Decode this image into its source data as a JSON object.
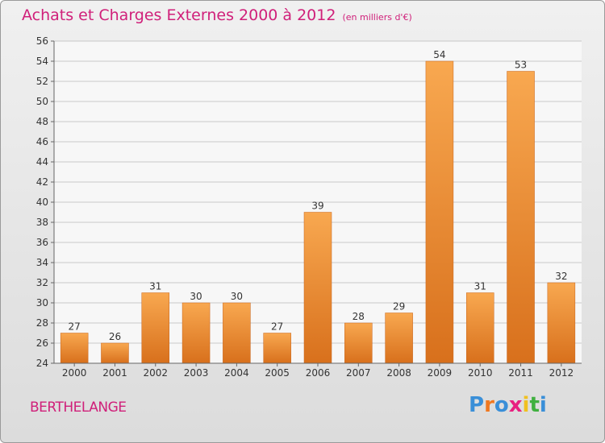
{
  "title": "Achats et Charges Externes 2000 à 2012",
  "subtitle": "(en milliers d'€)",
  "commune": "BERTHELANGE",
  "logo": {
    "letters": [
      "P",
      "r",
      "o",
      "x",
      "i",
      "t",
      "i"
    ],
    "colors": [
      "#3a8fd8",
      "#f07820",
      "#3a8fd8",
      "#e82080",
      "#f0c020",
      "#40b040",
      "#3a8fd8"
    ]
  },
  "colors": {
    "title": "#d0207a",
    "bar_top": "#f8a850",
    "bar_bottom": "#d8701c",
    "grid": "#c8c8c8"
  },
  "chart_data": {
    "type": "bar",
    "categories": [
      "2000",
      "2001",
      "2002",
      "2003",
      "2004",
      "2005",
      "2006",
      "2007",
      "2008",
      "2009",
      "2010",
      "2011",
      "2012"
    ],
    "values": [
      27,
      26,
      31,
      30,
      30,
      27,
      39,
      28,
      29,
      54,
      31,
      53,
      32
    ],
    "ylim": [
      24,
      56
    ],
    "yticks": [
      24,
      26,
      28,
      30,
      32,
      34,
      36,
      38,
      40,
      42,
      44,
      46,
      48,
      50,
      52,
      54,
      56
    ],
    "grid": true,
    "legend": "none"
  }
}
